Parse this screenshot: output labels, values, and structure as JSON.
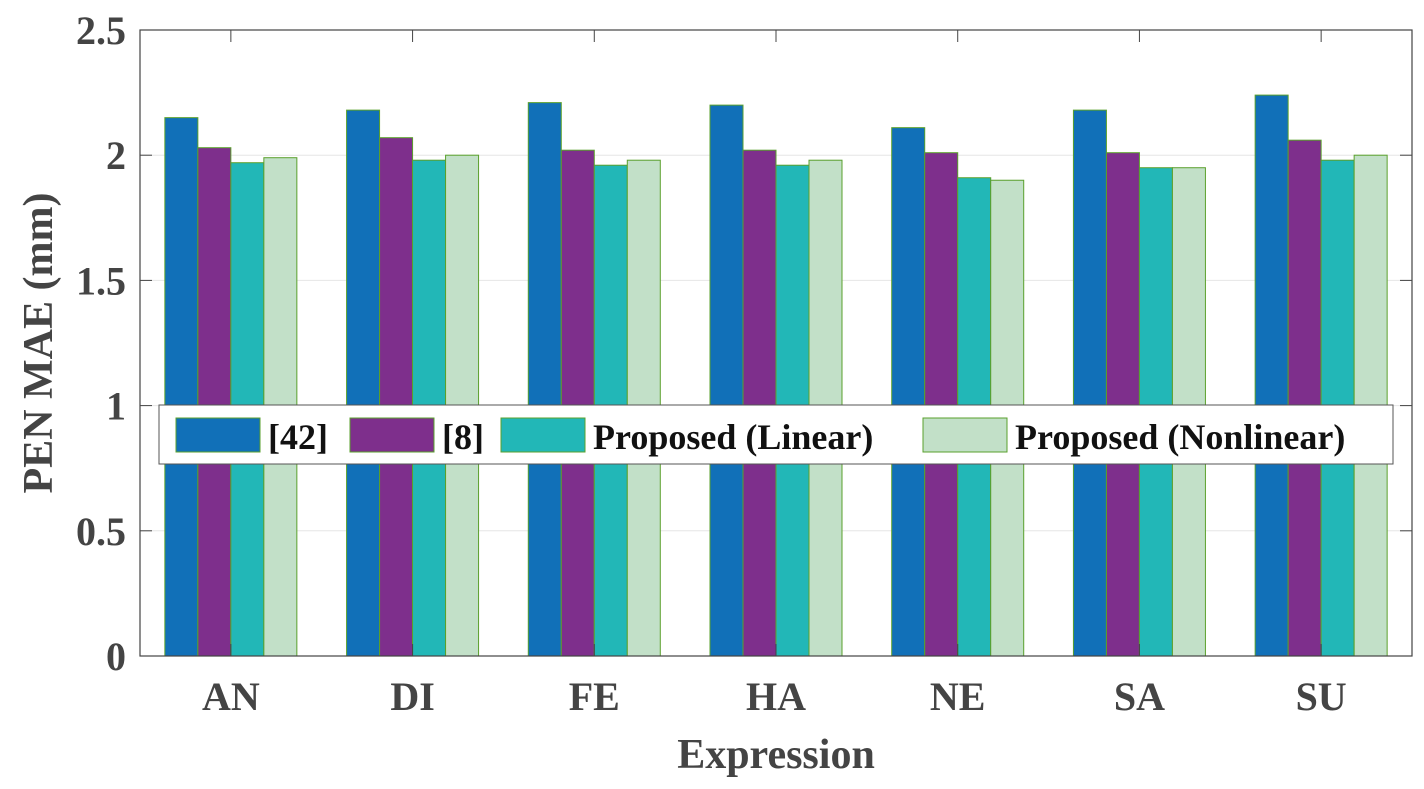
{
  "chart_data": {
    "type": "bar",
    "title": "",
    "xlabel": "Expression",
    "ylabel": "PEN MAE (mm)",
    "categories": [
      "AN",
      "DI",
      "FE",
      "HA",
      "NE",
      "SA",
      "SU"
    ],
    "series": [
      {
        "name": "[42]",
        "color": "#1170b8",
        "values": [
          2.15,
          2.18,
          2.21,
          2.2,
          2.11,
          2.18,
          2.24
        ]
      },
      {
        "name": "[8]",
        "color": "#7e2f8c",
        "values": [
          2.03,
          2.07,
          2.02,
          2.02,
          2.01,
          2.01,
          2.06
        ]
      },
      {
        "name": "Proposed (Linear)",
        "color": "#22b7b7",
        "values": [
          1.97,
          1.98,
          1.96,
          1.96,
          1.91,
          1.95,
          1.98
        ]
      },
      {
        "name": "Proposed (Nonlinear)",
        "color": "#c2e0c8",
        "values": [
          1.99,
          2.0,
          1.98,
          1.98,
          1.9,
          1.95,
          2.0
        ]
      }
    ],
    "ylim": [
      0,
      2.5
    ],
    "yticks": [
      "0",
      "0.5",
      "1",
      "1.5",
      "2",
      "2.5"
    ],
    "grid": true,
    "legend": "middle-center"
  }
}
